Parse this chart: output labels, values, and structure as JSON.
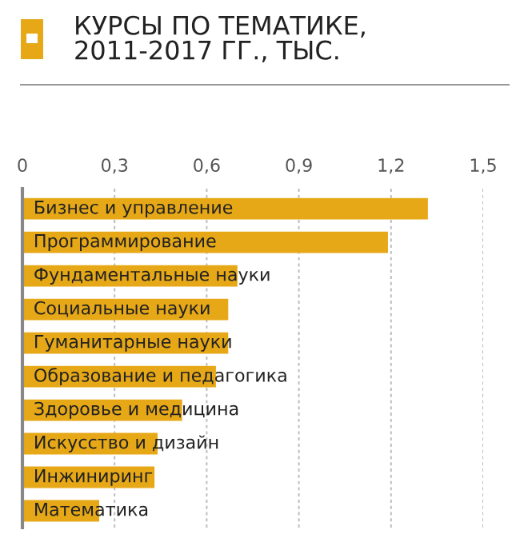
{
  "chart_data": {
    "type": "bar",
    "orientation": "horizontal",
    "title": "КУРСЫ ПО ТЕМАТИКЕ,\n2011-2017 ГГ., ТЫС.",
    "categories": [
      "Бизнес и управление",
      "Программирование",
      "Фундаментальные науки",
      "Социальные науки",
      "Гуманитарные науки",
      "Образование и педагогика",
      "Здоровье и медицина",
      "Искусство и дизайн",
      "Инжиниринг",
      "Математика"
    ],
    "values": [
      1.32,
      1.19,
      0.7,
      0.67,
      0.67,
      0.63,
      0.52,
      0.44,
      0.43,
      0.25
    ],
    "color": "#e6a817",
    "xlim": [
      0,
      1.5
    ],
    "xticks": [
      0,
      {
        "value": 0.3,
        "label": "0,3"
      },
      {
        "value": 0.6,
        "label": "0,6"
      },
      {
        "value": 0.9,
        "label": "0,9"
      },
      {
        "value": 1.2,
        "label": "1,2"
      },
      {
        "value": 1.5,
        "label": "1,5"
      }
    ],
    "grid": "x",
    "legend": false
  }
}
